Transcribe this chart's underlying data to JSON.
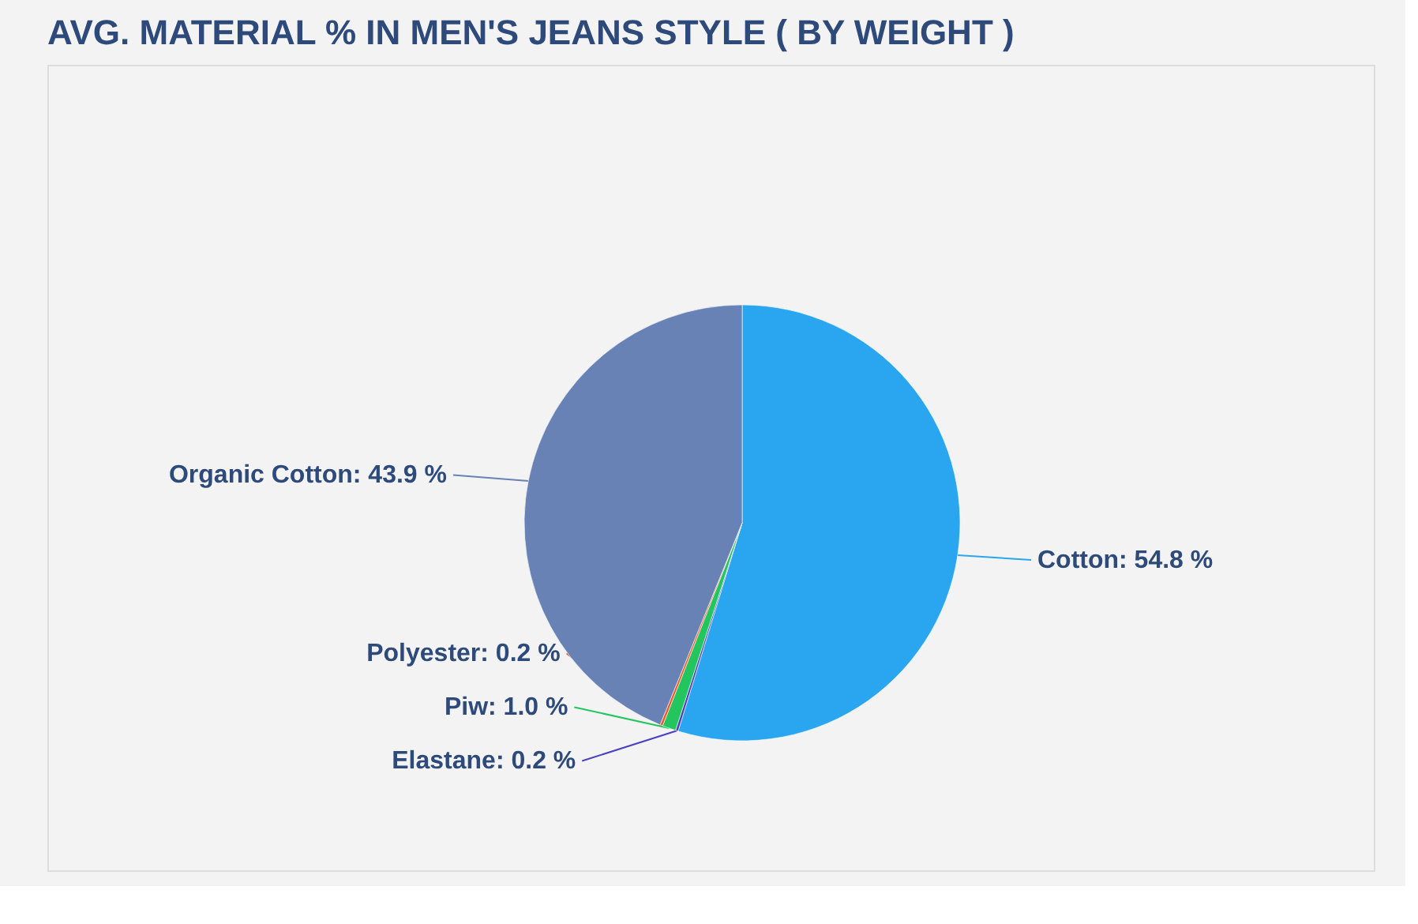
{
  "chart_data": {
    "type": "pie",
    "title": "AVG. MATERIAL % IN MEN'S JEANS STYLE ( BY WEIGHT )",
    "categories": [
      "Cotton",
      "Elastane",
      "Piw",
      "Polyester",
      "Organic Cotton"
    ],
    "values": [
      54.8,
      0.2,
      1.0,
      0.2,
      43.9
    ],
    "value_labels": [
      "54.8 %",
      "0.2 %",
      "1.0 %",
      "0.2 %",
      "43.9 %"
    ],
    "colors": [
      "#2aa5f0",
      "#4b3fc0",
      "#22c55e",
      "#f05a28",
      "#6882b5"
    ],
    "legend": false
  }
}
